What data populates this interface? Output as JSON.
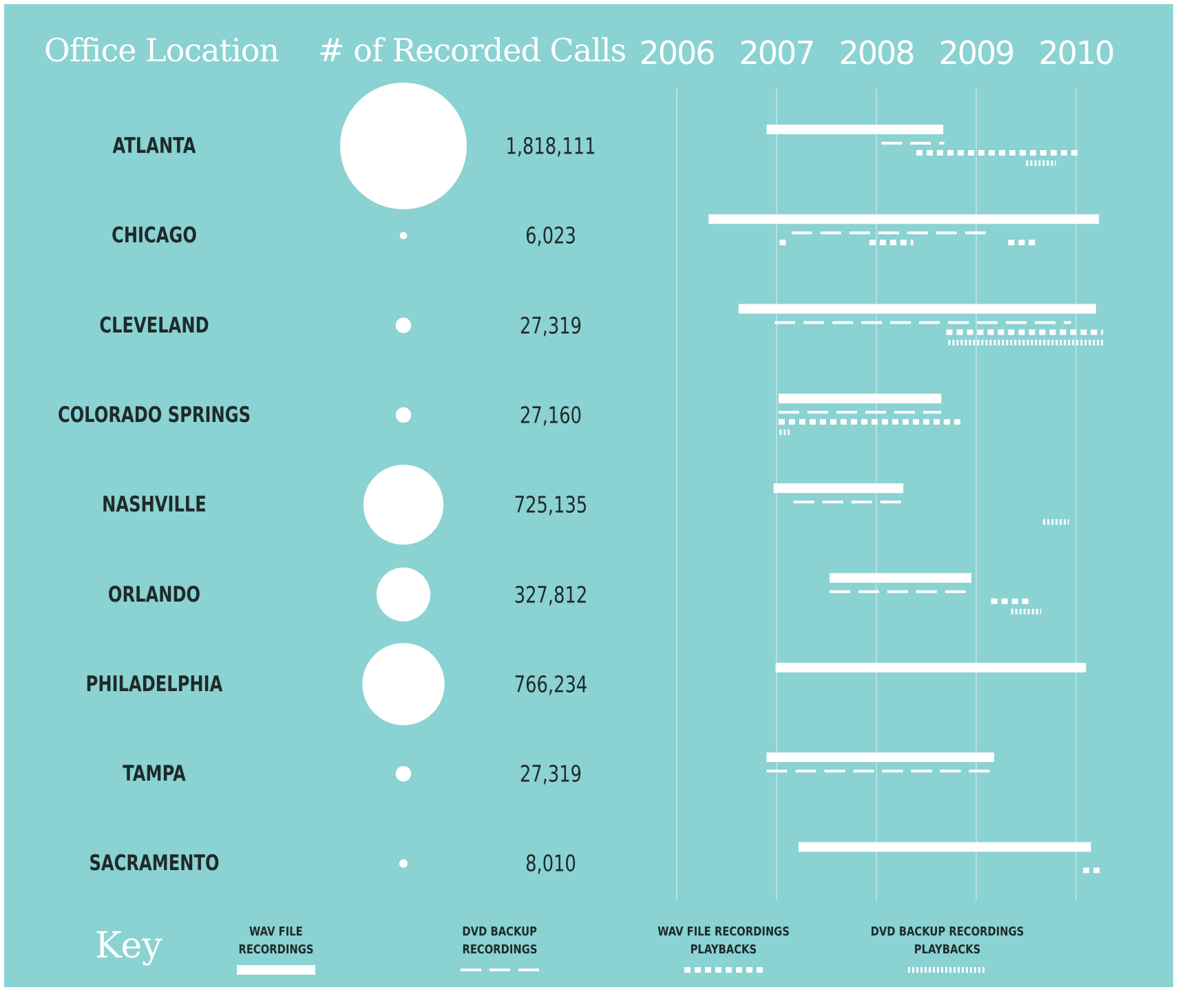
{
  "header": {
    "office_location": "Office Location",
    "recorded_calls": "# of Recorded Calls"
  },
  "colors": {
    "background": "#8bd2d2",
    "marks": "#ffffff",
    "text": "#1f2a2a",
    "gridline": "#c3e6e6"
  },
  "chart_data": {
    "type": "table",
    "years": [
      "2006",
      "2007",
      "2008",
      "2009",
      "2010"
    ],
    "rows": [
      {
        "city": "ATLANTA",
        "calls_label": "1,818,111",
        "calls": 1818111,
        "wav": [
          2006.9,
          2008.67
        ],
        "dvd": [
          2008.05,
          2008.68
        ],
        "wav_playbacks": [
          2008.4,
          2010.05
        ],
        "dvd_playbacks": [
          2009.5,
          2009.8
        ]
      },
      {
        "city": "CHICAGO",
        "calls_label": "6,023",
        "calls": 6023,
        "wav": [
          2006.32,
          2010.23
        ],
        "dvd": [
          2007.15,
          2009.15
        ],
        "wav_playbacks": [
          [
            2007.03,
            2007.1
          ],
          [
            2007.93,
            2008.37
          ],
          [
            2009.32,
            2009.6
          ]
        ],
        "dvd_playbacks": null
      },
      {
        "city": "CLEVELAND",
        "calls_label": "27,319",
        "calls": 27319,
        "wav": [
          2006.62,
          2010.2
        ],
        "dvd": [
          2006.98,
          2009.95
        ],
        "wav_playbacks": [
          2008.7,
          2010.27
        ],
        "dvd_playbacks": [
          2008.72,
          2010.27
        ]
      },
      {
        "city": "COLORADO SPRINGS",
        "calls_label": "27,160",
        "calls": 27160,
        "wav": [
          2007.02,
          2008.65
        ],
        "dvd": [
          2007.02,
          2008.65
        ],
        "wav_playbacks": [
          2007.02,
          2008.85
        ],
        "dvd_playbacks": [
          2007.03,
          2007.13
        ]
      },
      {
        "city": "NASHVILLE",
        "calls_label": "725,135",
        "calls": 725135,
        "wav": [
          2006.97,
          2008.27
        ],
        "dvd": [
          2007.17,
          2008.25
        ],
        "wav_playbacks": null,
        "dvd_playbacks": [
          2009.67,
          2009.93
        ]
      },
      {
        "city": "ORLANDO",
        "calls_label": "327,812",
        "calls": 327812,
        "wav": [
          2007.53,
          2008.95
        ],
        "dvd": [
          2007.53,
          2008.9
        ],
        "wav_playbacks": [
          2009.15,
          2009.55
        ],
        "dvd_playbacks": [
          2009.35,
          2009.65
        ]
      },
      {
        "city": "PHILADELPHIA",
        "calls_label": "766,234",
        "calls": 766234,
        "wav": [
          2006.99,
          2010.1
        ],
        "dvd": null,
        "wav_playbacks": null,
        "dvd_playbacks": null
      },
      {
        "city": "TAMPA",
        "calls_label": "27,319",
        "calls": 27319,
        "wav": [
          2006.9,
          2009.18
        ],
        "dvd": [
          2006.9,
          2009.18
        ],
        "wav_playbacks": null,
        "dvd_playbacks": null
      },
      {
        "city": "SACRAMENTO",
        "calls_label": "8,010",
        "calls": 8010,
        "wav": [
          2007.22,
          2010.15
        ],
        "dvd": null,
        "wav_playbacks": [
          2010.07,
          2010.24
        ],
        "dvd_playbacks": null
      }
    ]
  },
  "key": {
    "title": "Key",
    "items": [
      {
        "line1": "WAV FILE",
        "line2": "RECORDINGS",
        "style": "solid"
      },
      {
        "line1": "DVD BACKUP",
        "line2": "RECORDINGS",
        "style": "dashed"
      },
      {
        "line1": "WAV FILE RECORDINGS",
        "line2": "PLAYBACKS",
        "style": "dotted"
      },
      {
        "line1": "DVD BACKUP RECORDINGS",
        "line2": "PLAYBACKS",
        "style": "ticked"
      }
    ]
  }
}
